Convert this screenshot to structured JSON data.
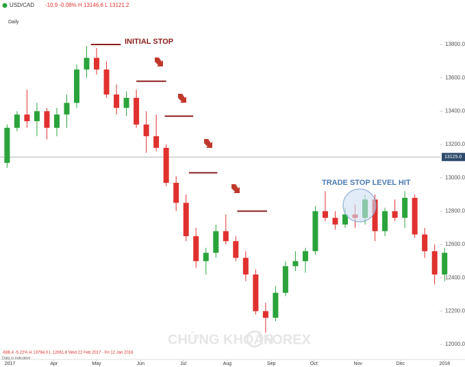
{
  "chart_data": {
    "type": "candlestick",
    "symbol": "USD/CAD",
    "header_stats": "-10.9  -0.08%  H 13146.6  L 13121.2",
    "interval": "Daily",
    "footer_stats": "-686.4  -5.22%  H 13794.0  L 12061.6   Wed 22 Feb 2017 - Fri 12 Jan 2018",
    "footnote": "Data is indicative",
    "watermark": [
      "CHỨNG KHOÁN",
      "FOREX"
    ],
    "annotations": [
      "INITIAL STOP",
      "TRADE STOP LEVEL HIT"
    ],
    "up_color": "#2aa33b",
    "down_color": "#e0312f",
    "stop_color": "#8b1c1c",
    "x": [
      "2017-02-27",
      "2017-03-06",
      "2017-03-13",
      "2017-03-20",
      "2017-03-27",
      "2017-04-03",
      "2017-04-10",
      "2017-04-17",
      "2017-04-24",
      "2017-05-01",
      "2017-05-08",
      "2017-05-15",
      "2017-05-22",
      "2017-05-29",
      "2017-06-05",
      "2017-06-12",
      "2017-06-19",
      "2017-06-26",
      "2017-07-03",
      "2017-07-10",
      "2017-07-17",
      "2017-07-24",
      "2017-07-31",
      "2017-08-07",
      "2017-08-14",
      "2017-08-21",
      "2017-08-28",
      "2017-09-04",
      "2017-09-11",
      "2017-09-18",
      "2017-09-25",
      "2017-10-02",
      "2017-10-09",
      "2017-10-16",
      "2017-10-23",
      "2017-10-30",
      "2017-11-06",
      "2017-11-13",
      "2017-11-20",
      "2017-11-27",
      "2017-12-04",
      "2017-12-11",
      "2017-12-18",
      "2017-12-25",
      "2018-01-01"
    ],
    "ohlc": [
      [
        13090,
        13320,
        13060,
        13300
      ],
      [
        13300,
        13400,
        13280,
        13380
      ],
      [
        13380,
        13530,
        13300,
        13340
      ],
      [
        13340,
        13450,
        13250,
        13400
      ],
      [
        13400,
        13420,
        13230,
        13300
      ],
      [
        13300,
        13420,
        13250,
        13380
      ],
      [
        13380,
        13500,
        13300,
        13450
      ],
      [
        13450,
        13680,
        13420,
        13650
      ],
      [
        13650,
        13790,
        13600,
        13720
      ],
      [
        13720,
        13780,
        13620,
        13650
      ],
      [
        13650,
        13700,
        13480,
        13500
      ],
      [
        13500,
        13560,
        13380,
        13420
      ],
      [
        13420,
        13520,
        13370,
        13480
      ],
      [
        13480,
        13530,
        13300,
        13320
      ],
      [
        13320,
        13400,
        13150,
        13250
      ],
      [
        13250,
        13380,
        13160,
        13180
      ],
      [
        13180,
        13200,
        12950,
        12970
      ],
      [
        12970,
        13010,
        12800,
        12850
      ],
      [
        12850,
        12900,
        12620,
        12650
      ],
      [
        12650,
        12700,
        12460,
        12500
      ],
      [
        12500,
        12580,
        12420,
        12550
      ],
      [
        12550,
        12720,
        12520,
        12680
      ],
      [
        12680,
        12780,
        12600,
        12620
      ],
      [
        12620,
        12650,
        12500,
        12520
      ],
      [
        12520,
        12560,
        12380,
        12420
      ],
      [
        12420,
        12450,
        12180,
        12200
      ],
      [
        12200,
        12250,
        12070,
        12160
      ],
      [
        12160,
        12350,
        12140,
        12310
      ],
      [
        12310,
        12500,
        12290,
        12470
      ],
      [
        12470,
        12560,
        12440,
        12500
      ],
      [
        12500,
        12580,
        12430,
        12560
      ],
      [
        12560,
        12830,
        12540,
        12800
      ],
      [
        12800,
        12920,
        12740,
        12760
      ],
      [
        12760,
        12800,
        12690,
        12720
      ],
      [
        12720,
        12820,
        12700,
        12780
      ],
      [
        12780,
        12840,
        12700,
        12760
      ],
      [
        12760,
        12900,
        12720,
        12870
      ],
      [
        12870,
        12900,
        12620,
        12680
      ],
      [
        12680,
        12820,
        12650,
        12800
      ],
      [
        12800,
        12870,
        12740,
        12760
      ],
      [
        12760,
        12920,
        12700,
        12880
      ],
      [
        12880,
        12900,
        12640,
        12660
      ],
      [
        12660,
        12700,
        12520,
        12560
      ],
      [
        12560,
        12600,
        12360,
        12420
      ],
      [
        12420,
        12580,
        12380,
        12550
      ]
    ],
    "stop_levels": [
      {
        "value": 13800,
        "x": [
          "2017-04-27",
          "2017-05-18"
        ]
      },
      {
        "value": 13580,
        "x": [
          "2017-05-29",
          "2017-06-19"
        ]
      },
      {
        "value": 13370,
        "x": [
          "2017-06-18",
          "2017-07-08"
        ]
      },
      {
        "value": 13030,
        "x": [
          "2017-07-05",
          "2017-07-25"
        ]
      },
      {
        "value": 12800,
        "x": [
          "2017-08-08",
          "2017-08-29"
        ]
      }
    ],
    "last_price": {
      "value": 13125,
      "label": "13125.0"
    },
    "xlim": [
      "2017-02-22",
      "2018-01-12"
    ],
    "xticks": [
      {
        "value": "2017-03-01",
        "label": "2017"
      },
      {
        "value": "2017-04-01",
        "label": "Apr"
      },
      {
        "value": "2017-05-01",
        "label": "May"
      },
      {
        "value": "2017-06-01",
        "label": "Jun"
      },
      {
        "value": "2017-07-01",
        "label": "Jul"
      },
      {
        "value": "2017-08-01",
        "label": "Aug"
      },
      {
        "value": "2017-09-01",
        "label": "Sep"
      },
      {
        "value": "2017-10-01",
        "label": "Oct"
      },
      {
        "value": "2017-11-01",
        "label": "Nov"
      },
      {
        "value": "2017-12-01",
        "label": "Dec"
      },
      {
        "value": "2018-01-01",
        "label": "2018"
      }
    ],
    "ylim": [
      11910,
      13985
    ],
    "yticks": [
      {
        "value": 12000,
        "label": "12000.0"
      },
      {
        "value": 12200,
        "label": "12200.0"
      },
      {
        "value": 12400,
        "label": "12400.0"
      },
      {
        "value": 12600,
        "label": "12600.0"
      },
      {
        "value": 12800,
        "label": "12800.0"
      },
      {
        "value": 13000,
        "label": "13000.0"
      },
      {
        "value": 13200,
        "label": "13200.0"
      },
      {
        "value": 13400,
        "label": "13400.0"
      },
      {
        "value": 13600,
        "label": "13600.0"
      },
      {
        "value": 13800,
        "label": "13800.0"
      }
    ]
  }
}
